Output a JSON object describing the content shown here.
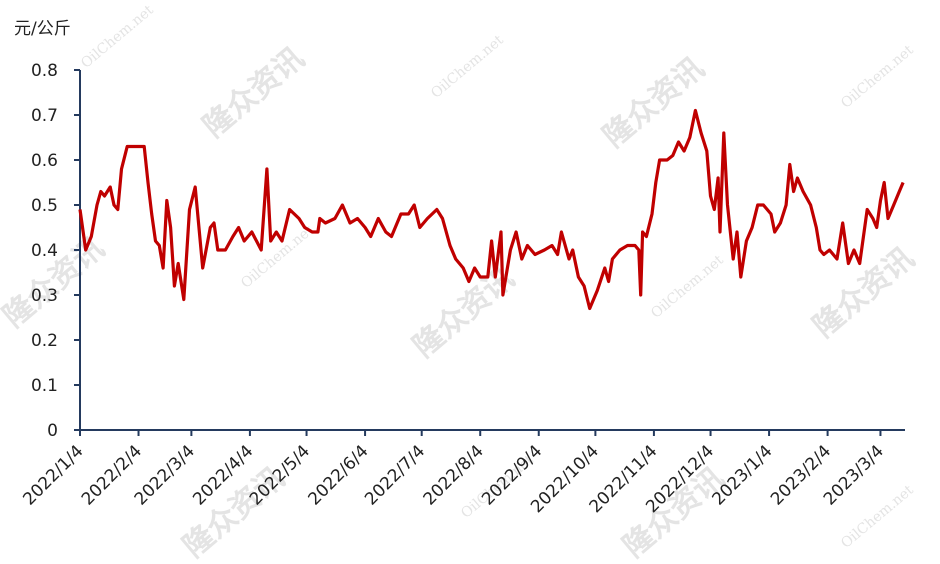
{
  "chart_data": {
    "type": "line",
    "y_label": "元/公斤",
    "watermarks": [
      "隆众资讯",
      "OilChem.net"
    ],
    "color": "#c00000",
    "x": [
      "2022/1/4",
      "2022/1/7",
      "2022/1/10",
      "2022/1/13",
      "2022/1/15",
      "2022/1/17",
      "2022/1/20",
      "2022/1/22",
      "2022/1/24",
      "2022/1/26",
      "2022/1/29",
      "2022/2/3",
      "2022/2/7",
      "2022/2/9",
      "2022/2/11",
      "2022/2/13",
      "2022/2/15",
      "2022/2/17",
      "2022/2/19",
      "2022/2/21",
      "2022/2/23",
      "2022/2/25",
      "2022/2/28",
      "2022/3/3",
      "2022/3/6",
      "2022/3/10",
      "2022/3/14",
      "2022/3/16",
      "2022/3/18",
      "2022/3/22",
      "2022/3/26",
      "2022/3/29",
      "2022/4/1",
      "2022/4/5",
      "2022/4/10",
      "2022/4/13",
      "2022/4/15",
      "2022/4/18",
      "2022/4/21",
      "2022/4/25",
      "2022/4/30",
      "2022/5/3",
      "2022/5/7",
      "2022/5/10",
      "2022/5/11",
      "2022/5/14",
      "2022/5/19",
      "2022/5/23",
      "2022/5/27",
      "2022/5/31",
      "2022/6/4",
      "2022/6/7",
      "2022/6/11",
      "2022/6/15",
      "2022/6/18",
      "2022/6/23",
      "2022/6/27",
      "2022/6/30",
      "2022/7/3",
      "2022/7/7",
      "2022/7/12",
      "2022/7/15",
      "2022/7/19",
      "2022/7/22",
      "2022/7/26",
      "2022/7/29",
      "2022/8/1",
      "2022/8/4",
      "2022/8/8",
      "2022/8/10",
      "2022/8/12",
      "2022/8/15",
      "2022/8/16",
      "2022/8/20",
      "2022/8/23",
      "2022/8/26",
      "2022/8/29",
      "2022/9/2",
      "2022/9/7",
      "2022/9/11",
      "2022/9/14",
      "2022/9/16",
      "2022/9/20",
      "2022/9/22",
      "2022/9/25",
      "2022/9/28",
      "2022/10/1",
      "2022/10/5",
      "2022/10/9",
      "2022/10/11",
      "2022/10/13",
      "2022/10/17",
      "2022/10/21",
      "2022/10/25",
      "2022/10/27",
      "2022/10/28",
      "2022/10/29",
      "2022/10/31",
      "2022/11/3",
      "2022/11/5",
      "2022/11/7",
      "2022/11/11",
      "2022/11/14",
      "2022/11/17",
      "2022/11/20",
      "2022/11/23",
      "2022/11/26",
      "2022/11/29",
      "2022/12/2",
      "2022/12/4",
      "2022/12/6",
      "2022/12/8",
      "2022/12/9",
      "2022/12/11",
      "2022/12/13",
      "2022/12/16",
      "2022/12/18",
      "2022/12/20",
      "2022/12/23",
      "2022/12/26",
      "2022/12/29",
      "2023/1/1",
      "2023/1/5",
      "2023/1/7",
      "2023/1/10",
      "2023/1/13",
      "2023/1/15",
      "2023/1/17",
      "2023/1/19",
      "2023/1/22",
      "2023/1/26",
      "2023/1/29",
      "2023/1/31",
      "2023/2/2",
      "2023/2/5",
      "2023/2/9",
      "2023/2/12",
      "2023/2/15",
      "2023/2/18",
      "2023/2/21",
      "2023/2/25",
      "2023/2/28",
      "2023/3/2",
      "2023/3/4",
      "2023/3/6",
      "2023/3/8",
      "2023/3/11",
      "2023/3/14",
      "2023/3/16"
    ],
    "values": [
      0.49,
      0.4,
      0.43,
      0.5,
      0.53,
      0.52,
      0.54,
      0.5,
      0.49,
      0.58,
      0.63,
      0.63,
      0.63,
      0.55,
      0.48,
      0.42,
      0.41,
      0.36,
      0.51,
      0.45,
      0.32,
      0.37,
      0.29,
      0.49,
      0.54,
      0.36,
      0.45,
      0.46,
      0.4,
      0.4,
      0.43,
      0.45,
      0.42,
      0.44,
      0.4,
      0.58,
      0.42,
      0.44,
      0.42,
      0.49,
      0.47,
      0.45,
      0.44,
      0.44,
      0.47,
      0.46,
      0.47,
      0.5,
      0.46,
      0.47,
      0.45,
      0.43,
      0.47,
      0.44,
      0.43,
      0.48,
      0.48,
      0.5,
      0.45,
      0.47,
      0.49,
      0.47,
      0.41,
      0.38,
      0.36,
      0.33,
      0.36,
      0.34,
      0.34,
      0.42,
      0.34,
      0.44,
      0.3,
      0.4,
      0.44,
      0.38,
      0.41,
      0.39,
      0.4,
      0.41,
      0.39,
      0.44,
      0.38,
      0.4,
      0.34,
      0.32,
      0.27,
      0.31,
      0.36,
      0.33,
      0.38,
      0.4,
      0.41,
      0.41,
      0.4,
      0.3,
      0.44,
      0.43,
      0.48,
      0.55,
      0.6,
      0.6,
      0.61,
      0.64,
      0.62,
      0.65,
      0.71,
      0.66,
      0.62,
      0.52,
      0.49,
      0.56,
      0.44,
      0.66,
      0.5,
      0.38,
      0.44,
      0.34,
      0.42,
      0.45,
      0.5,
      0.5,
      0.48,
      0.44,
      0.46,
      0.5,
      0.59,
      0.53,
      0.56,
      0.53,
      0.5,
      0.45,
      0.4,
      0.39,
      0.4,
      0.38,
      0.46,
      0.37,
      0.4,
      0.37,
      0.49,
      0.47,
      0.45,
      0.51,
      0.55,
      0.47,
      0.5,
      0.53,
      0.55
    ],
    "xlim": [
      "2022/1/4",
      "2023/3/17"
    ],
    "xticks": [
      "2022/1/4",
      "2022/2/4",
      "2022/3/4",
      "2022/4/4",
      "2022/5/4",
      "2022/6/4",
      "2022/7/4",
      "2022/8/4",
      "2022/9/4",
      "2022/10/4",
      "2022/11/4",
      "2022/12/4",
      "2023/1/4",
      "2023/2/4",
      "2023/3/4"
    ],
    "ylim": [
      0,
      0.8
    ],
    "yticks": [
      0,
      0.1,
      0.2,
      0.3,
      0.4,
      0.5,
      0.6,
      0.7,
      0.8
    ]
  }
}
